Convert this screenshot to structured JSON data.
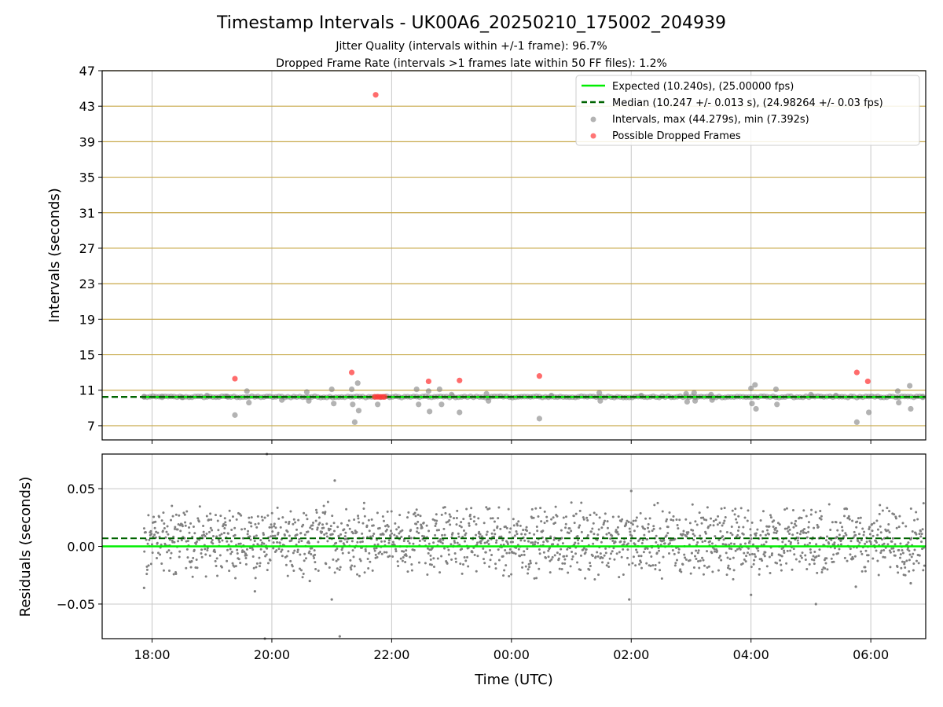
{
  "figure": {
    "title": "Timestamp Intervals - UK00A6_20250210_175002_204939",
    "subtitle_1": "Jitter Quality (intervals within +/-1 frame): 96.7%",
    "subtitle_2": "Dropped Frame Rate (intervals >1 frames late within 50 FF files): 1.2%"
  },
  "colors": {
    "expected": "#00ee00",
    "median": "#006400",
    "intervals": "#808080",
    "dropped": "#ff3b3b",
    "hgrid_top": "#c8a94a",
    "grid": "#c8c8c8"
  },
  "chart_data": [
    {
      "type": "scatter",
      "panel": "top",
      "ylabel": "Intervals (seconds)",
      "xlabel": "",
      "xlim": [
        "17:10",
        "06:55"
      ],
      "ylim": [
        5.4,
        47
      ],
      "yticks": [
        "7",
        "11",
        "15",
        "19",
        "23",
        "27",
        "31",
        "35",
        "39",
        "43",
        "47"
      ],
      "legend_placement": "top-right",
      "legend": [
        "Expected (10.240s), (25.00000 fps)",
        "Median (10.247 +/- 0.013 s), (24.98264 +/- 0.03 fps)",
        "Intervals, max (44.279s), min (7.392s)",
        "Possible Dropped Frames"
      ],
      "expected_value": 10.24,
      "median_value": 10.247,
      "series_intervals": [
        {
          "x": "17:52",
          "y": 10.25
        },
        {
          "x": "18:10",
          "y": 10.3
        },
        {
          "x": "18:30",
          "y": 10.2
        },
        {
          "x": "18:55",
          "y": 10.4
        },
        {
          "x": "19:15",
          "y": 10.3
        },
        {
          "x": "19:23",
          "y": 8.2
        },
        {
          "x": "19:35",
          "y": 10.9
        },
        {
          "x": "19:37",
          "y": 9.6
        },
        {
          "x": "20:10",
          "y": 9.9
        },
        {
          "x": "20:35",
          "y": 10.8
        },
        {
          "x": "20:37",
          "y": 9.8
        },
        {
          "x": "21:00",
          "y": 11.1
        },
        {
          "x": "21:02",
          "y": 9.5
        },
        {
          "x": "21:20",
          "y": 11.1
        },
        {
          "x": "21:21",
          "y": 9.4
        },
        {
          "x": "21:23",
          "y": 7.4
        },
        {
          "x": "21:26",
          "y": 11.8
        },
        {
          "x": "21:27",
          "y": 8.7
        },
        {
          "x": "21:46",
          "y": 9.4
        },
        {
          "x": "22:25",
          "y": 11.1
        },
        {
          "x": "22:27",
          "y": 9.4
        },
        {
          "x": "22:37",
          "y": 10.9
        },
        {
          "x": "22:38",
          "y": 8.6
        },
        {
          "x": "22:48",
          "y": 11.1
        },
        {
          "x": "22:50",
          "y": 9.4
        },
        {
          "x": "23:00",
          "y": 10.5
        },
        {
          "x": "23:08",
          "y": 8.5
        },
        {
          "x": "23:35",
          "y": 10.6
        },
        {
          "x": "23:37",
          "y": 9.8
        },
        {
          "x": "00:28",
          "y": 7.8
        },
        {
          "x": "00:40",
          "y": 10.4
        },
        {
          "x": "01:28",
          "y": 10.7
        },
        {
          "x": "01:29",
          "y": 9.8
        },
        {
          "x": "02:10",
          "y": 10.4
        },
        {
          "x": "02:55",
          "y": 10.6
        },
        {
          "x": "02:56",
          "y": 9.7
        },
        {
          "x": "03:03",
          "y": 10.7
        },
        {
          "x": "03:04",
          "y": 9.8
        },
        {
          "x": "03:20",
          "y": 10.5
        },
        {
          "x": "03:21",
          "y": 9.9
        },
        {
          "x": "04:00",
          "y": 11.2
        },
        {
          "x": "04:01",
          "y": 9.5
        },
        {
          "x": "04:04",
          "y": 11.6
        },
        {
          "x": "04:05",
          "y": 8.9
        },
        {
          "x": "04:25",
          "y": 11.1
        },
        {
          "x": "04:26",
          "y": 9.4
        },
        {
          "x": "05:00",
          "y": 10.5
        },
        {
          "x": "05:25",
          "y": 10.4
        },
        {
          "x": "05:46",
          "y": 7.4
        },
        {
          "x": "05:58",
          "y": 8.5
        },
        {
          "x": "06:27",
          "y": 10.9
        },
        {
          "x": "06:28",
          "y": 9.6
        },
        {
          "x": "06:39",
          "y": 11.5
        },
        {
          "x": "06:40",
          "y": 8.9
        },
        {
          "x": "06:52",
          "y": 10.2
        }
      ],
      "series_dropped": [
        {
          "x": "19:23",
          "y": 12.3
        },
        {
          "x": "21:20",
          "y": 13.0
        },
        {
          "x": "21:44",
          "y": 44.28
        },
        {
          "x": "21:43",
          "y": 10.25
        },
        {
          "x": "21:45",
          "y": 10.25
        },
        {
          "x": "21:47",
          "y": 10.25
        },
        {
          "x": "21:49",
          "y": 10.25
        },
        {
          "x": "21:51",
          "y": 10.25
        },
        {
          "x": "21:53",
          "y": 10.25
        },
        {
          "x": "22:37",
          "y": 12.0
        },
        {
          "x": "23:08",
          "y": 12.1
        },
        {
          "x": "00:28",
          "y": 12.6
        },
        {
          "x": "05:46",
          "y": 13.0
        },
        {
          "x": "05:57",
          "y": 12.0
        }
      ]
    },
    {
      "type": "scatter",
      "panel": "bottom",
      "ylabel": "Residuals (seconds)",
      "xlabel": "Time (UTC)",
      "xlim": [
        "17:10",
        "06:55"
      ],
      "ylim": [
        -0.08,
        0.08
      ],
      "yticks": [
        "−0.05",
        "0.00",
        "0.05"
      ],
      "xticks": [
        "18:00",
        "20:00",
        "22:00",
        "00:00",
        "02:00",
        "04:00",
        "06:00"
      ],
      "expected_value": 0.0,
      "median_value": 0.007,
      "residual_range": [
        -0.03,
        0.04
      ],
      "residual_outliers": [
        {
          "x": "17:52",
          "y": -0.036
        },
        {
          "x": "19:43",
          "y": -0.039
        },
        {
          "x": "19:53",
          "y": -0.08
        },
        {
          "x": "19:55",
          "y": 0.08
        },
        {
          "x": "21:03",
          "y": 0.057
        },
        {
          "x": "21:08",
          "y": -0.078
        },
        {
          "x": "20:38",
          "y": -0.03
        },
        {
          "x": "21:00",
          "y": -0.046
        },
        {
          "x": "01:58",
          "y": -0.046
        },
        {
          "x": "02:00",
          "y": 0.048
        },
        {
          "x": "04:00",
          "y": -0.042
        },
        {
          "x": "05:05",
          "y": -0.05
        },
        {
          "x": "05:45",
          "y": -0.035
        },
        {
          "x": "06:40",
          "y": -0.032
        }
      ]
    }
  ]
}
